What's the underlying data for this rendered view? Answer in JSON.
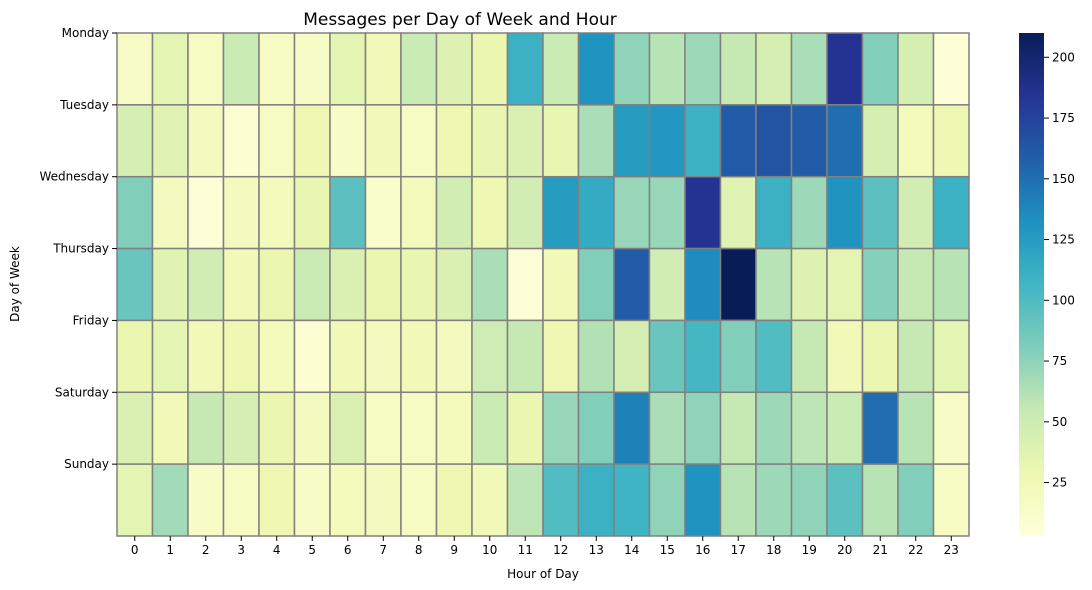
{
  "chart_data": {
    "type": "heatmap",
    "title": "Messages per Day of Week and Hour",
    "xlabel": "Hour of Day",
    "ylabel": "Day of Week",
    "x_categories": [
      "0",
      "1",
      "2",
      "3",
      "4",
      "5",
      "6",
      "7",
      "8",
      "9",
      "10",
      "11",
      "12",
      "13",
      "14",
      "15",
      "16",
      "17",
      "18",
      "19",
      "20",
      "21",
      "22",
      "23"
    ],
    "y_categories": [
      "Monday",
      "Tuesday",
      "Wednesday",
      "Thursday",
      "Friday",
      "Saturday",
      "Sunday"
    ],
    "values": [
      [
        16,
        35,
        17,
        52,
        17,
        15,
        35,
        25,
        52,
        40,
        30,
        110,
        52,
        130,
        75,
        60,
        70,
        55,
        45,
        65,
        185,
        80,
        45,
        5
      ],
      [
        45,
        38,
        20,
        8,
        18,
        28,
        15,
        23,
        18,
        28,
        32,
        42,
        33,
        65,
        125,
        128,
        110,
        160,
        165,
        160,
        150,
        45,
        22,
        28
      ],
      [
        80,
        20,
        5,
        20,
        22,
        32,
        95,
        12,
        22,
        48,
        28,
        48,
        125,
        115,
        72,
        72,
        185,
        38,
        110,
        70,
        130,
        95,
        48,
        110
      ],
      [
        90,
        38,
        48,
        25,
        30,
        52,
        42,
        30,
        32,
        42,
        65,
        5,
        25,
        80,
        160,
        48,
        135,
        210,
        60,
        40,
        35,
        78,
        55,
        60
      ],
      [
        30,
        35,
        25,
        28,
        22,
        8,
        25,
        20,
        25,
        20,
        50,
        55,
        28,
        62,
        45,
        90,
        105,
        80,
        100,
        55,
        25,
        30,
        55,
        35
      ],
      [
        42,
        25,
        55,
        45,
        30,
        20,
        42,
        18,
        18,
        22,
        52,
        30,
        72,
        80,
        140,
        65,
        75,
        55,
        70,
        58,
        52,
        150,
        60,
        15
      ],
      [
        35,
        68,
        15,
        18,
        28,
        15,
        22,
        20,
        18,
        28,
        25,
        58,
        100,
        110,
        108,
        75,
        130,
        60,
        70,
        75,
        95,
        60,
        80,
        18
      ]
    ],
    "colorbar": {
      "min": 3,
      "max": 210,
      "ticks": [
        25,
        50,
        75,
        100,
        125,
        150,
        175,
        200
      ],
      "colormap": [
        "#ffffd9",
        "#edf8b1",
        "#c7e9b4",
        "#7fcdbb",
        "#41b6c4",
        "#1d91c0",
        "#225ea8",
        "#253494",
        "#081d58"
      ]
    },
    "cell_border_color": "#808080",
    "legend": "right colorbar",
    "grid": false
  }
}
